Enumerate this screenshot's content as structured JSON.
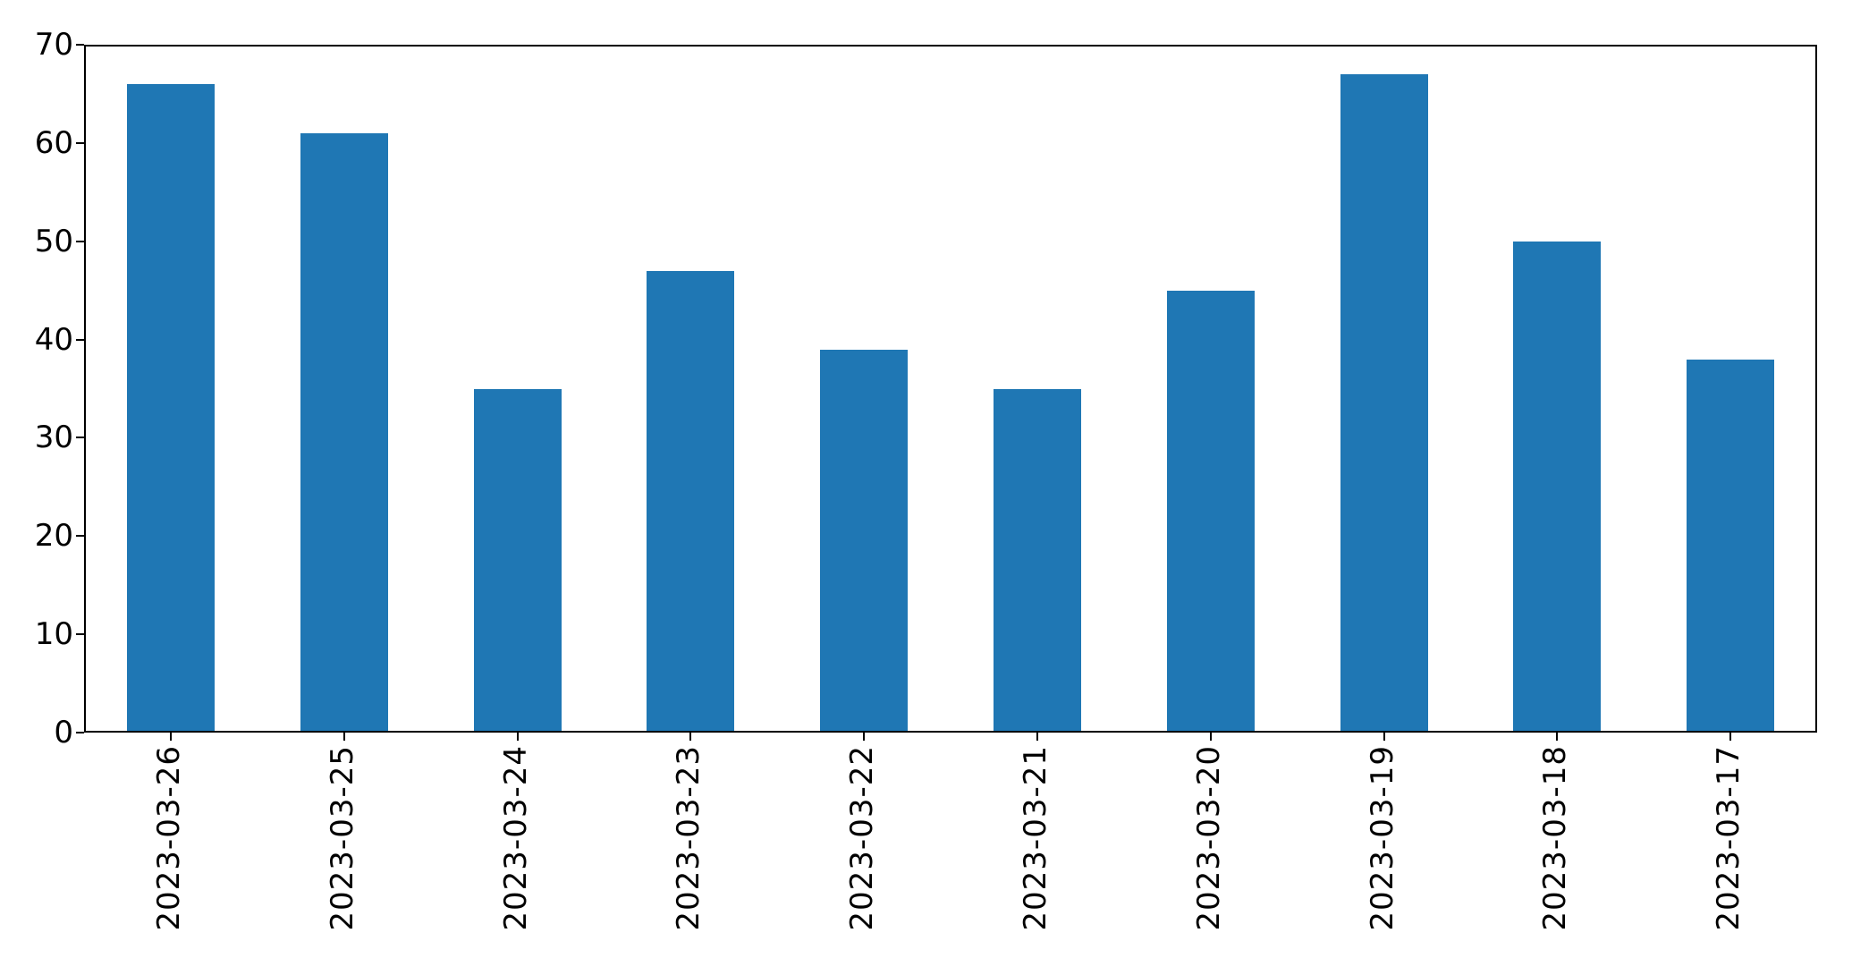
{
  "chart_data": {
    "type": "bar",
    "categories": [
      "2023-03-26",
      "2023-03-25",
      "2023-03-24",
      "2023-03-23",
      "2023-03-22",
      "2023-03-21",
      "2023-03-20",
      "2023-03-19",
      "2023-03-18",
      "2023-03-17"
    ],
    "values": [
      66,
      61,
      35,
      47,
      39,
      35,
      45,
      67,
      50,
      38
    ],
    "title": "",
    "xlabel": "",
    "ylabel": "",
    "ylim": [
      0,
      70
    ],
    "yticks": [
      0,
      10,
      20,
      30,
      40,
      50,
      60,
      70
    ],
    "bar_color": "#1f77b4",
    "axis_color": "#000000",
    "grid": false,
    "legend_position": "none",
    "x_tick_rotation": 90
  }
}
